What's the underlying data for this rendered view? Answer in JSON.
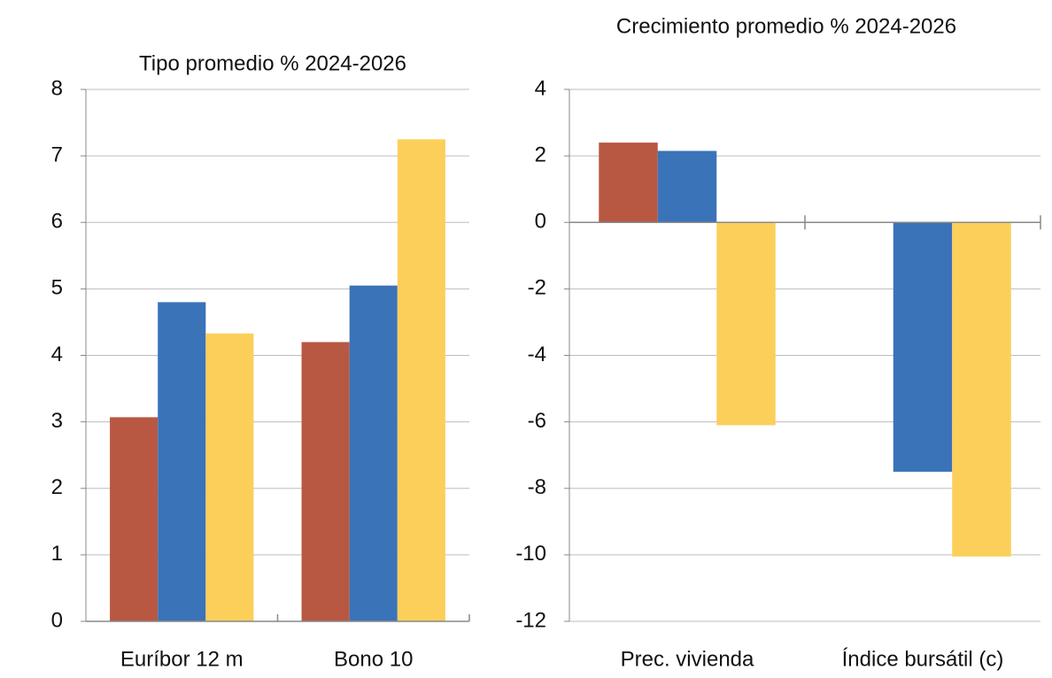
{
  "chart_data": [
    {
      "type": "bar",
      "title": "Tipo promedio % 2024-2026",
      "categories": [
        "Euríbor 12 m",
        "Bono 10"
      ],
      "series": [
        {
          "color": "#b85843",
          "values": [
            3.07,
            4.2
          ]
        },
        {
          "color": "#3a73b8",
          "values": [
            4.8,
            5.05
          ]
        },
        {
          "color": "#fccf5a",
          "values": [
            4.33,
            7.25
          ]
        }
      ],
      "ylim": [
        0,
        8
      ],
      "yticks": [
        0,
        1,
        2,
        3,
        4,
        5,
        6,
        7,
        8
      ],
      "grid": true
    },
    {
      "type": "bar",
      "title": "Crecimiento promedio % 2024-2026",
      "categories": [
        "Prec. vivienda",
        "Índice bursátil (c)"
      ],
      "series": [
        {
          "color": "#b85843",
          "values": [
            2.4,
            null
          ]
        },
        {
          "color": "#3a73b8",
          "values": [
            2.15,
            -7.5
          ]
        },
        {
          "color": "#fccf5a",
          "values": [
            -6.1,
            -10.05
          ]
        }
      ],
      "ylim": [
        -12,
        4
      ],
      "yticks": [
        -12,
        -10,
        -8,
        -6,
        -4,
        -2,
        0,
        2,
        4
      ],
      "grid": true
    }
  ]
}
